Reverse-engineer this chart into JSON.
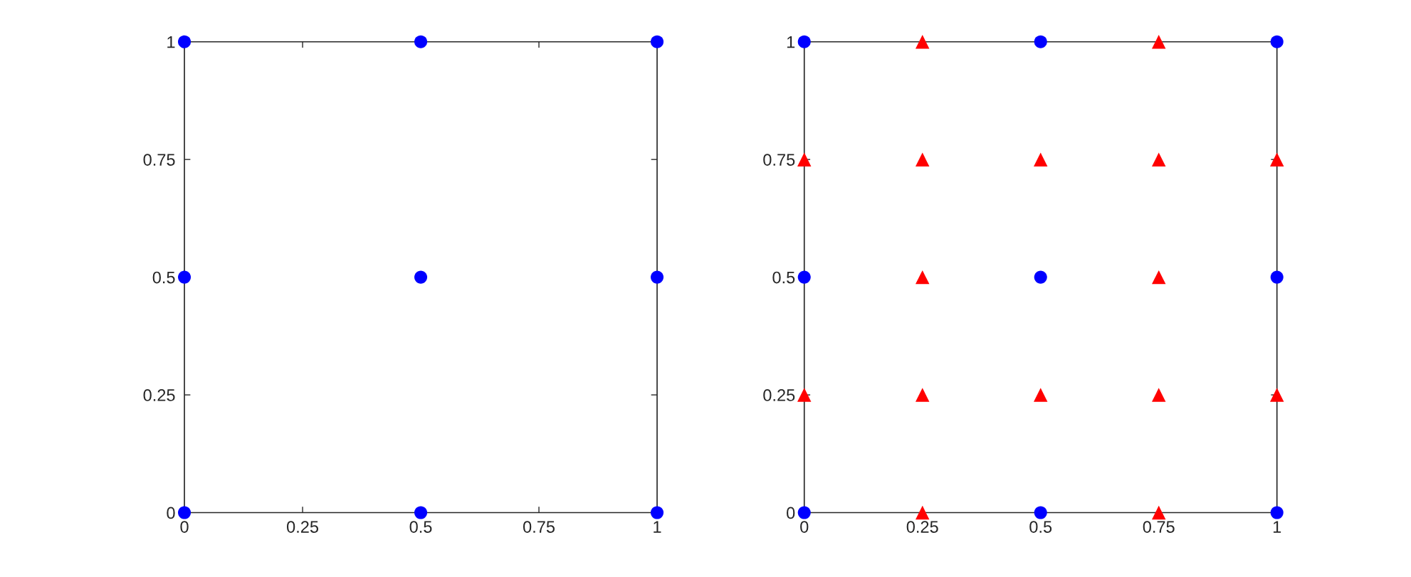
{
  "chart_data": [
    {
      "type": "scatter",
      "xlim": [
        0,
        1
      ],
      "ylim": [
        0,
        1
      ],
      "xticks": [
        0,
        0.25,
        0.5,
        0.75,
        1
      ],
      "yticks": [
        0,
        0.25,
        0.5,
        0.75,
        1
      ],
      "series": [
        {
          "color": "#0000ff",
          "marker": "circle",
          "x": [
            0,
            0.5,
            1,
            0,
            0.5,
            1,
            0,
            0.5,
            1
          ],
          "values": [
            0,
            0,
            0,
            0.5,
            0.5,
            0.5,
            1,
            1,
            1
          ]
        }
      ]
    },
    {
      "type": "scatter",
      "xlim": [
        0,
        1
      ],
      "ylim": [
        0,
        1
      ],
      "xticks": [
        0,
        0.25,
        0.5,
        0.75,
        1
      ],
      "yticks": [
        0,
        0.25,
        0.5,
        0.75,
        1
      ],
      "series": [
        {
          "color": "#0000ff",
          "marker": "circle",
          "x": [
            0,
            0.5,
            1,
            0,
            0.5,
            1,
            0,
            0.5,
            1
          ],
          "values": [
            0,
            0,
            0,
            0.5,
            0.5,
            0.5,
            1,
            1,
            1
          ]
        },
        {
          "color": "#ff0000",
          "marker": "triangle",
          "x": [
            0.25,
            0.75,
            0,
            0.25,
            0.5,
            0.75,
            1,
            0.25,
            0.75,
            0,
            0.25,
            0.5,
            0.75,
            1,
            0.25,
            0.75
          ],
          "values": [
            0,
            0,
            0.25,
            0.25,
            0.25,
            0.25,
            0.25,
            0.5,
            0.5,
            0.75,
            0.75,
            0.75,
            0.75,
            0.75,
            1,
            1
          ]
        }
      ]
    }
  ]
}
